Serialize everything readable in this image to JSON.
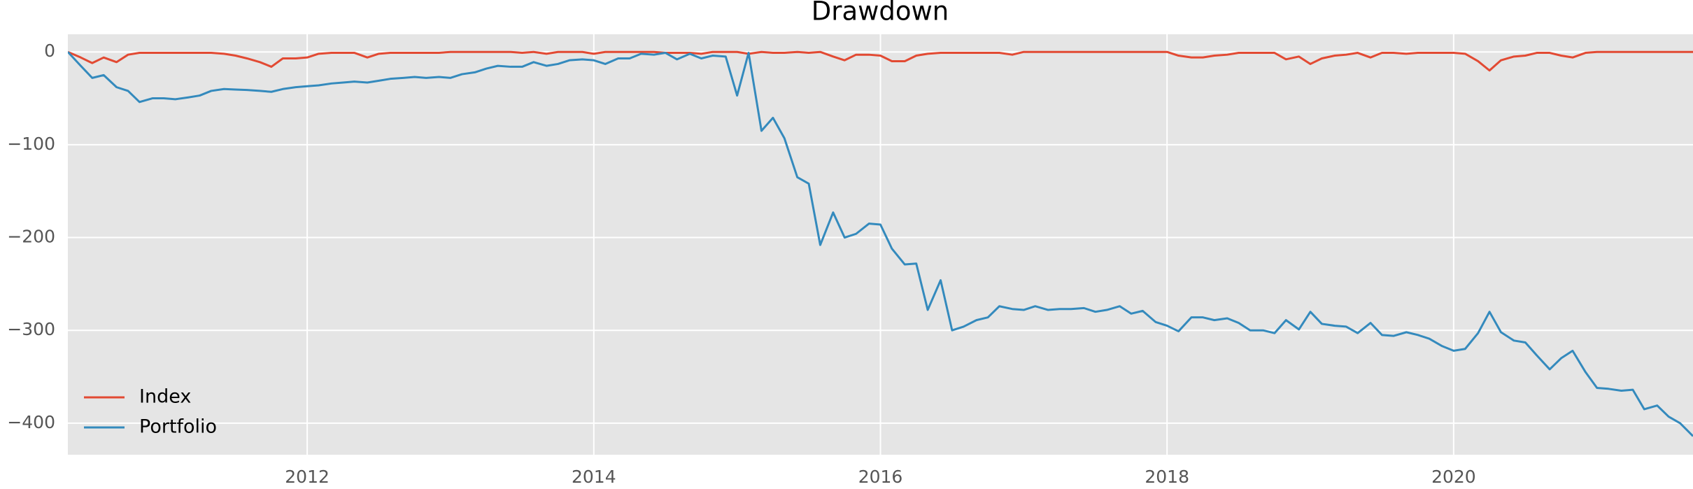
{
  "chart_data": {
    "type": "line",
    "title": "Drawdown",
    "x": [
      2010.33,
      2010.42,
      2010.5,
      2010.58,
      2010.67,
      2010.75,
      2010.83,
      2010.92,
      2011,
      2011.08,
      2011.17,
      2011.25,
      2011.33,
      2011.42,
      2011.5,
      2011.58,
      2011.67,
      2011.75,
      2011.83,
      2011.92,
      2012,
      2012.08,
      2012.17,
      2012.25,
      2012.33,
      2012.42,
      2012.5,
      2012.58,
      2012.67,
      2012.75,
      2012.83,
      2012.92,
      2013,
      2013.08,
      2013.17,
      2013.25,
      2013.33,
      2013.42,
      2013.5,
      2013.58,
      2013.67,
      2013.75,
      2013.83,
      2013.92,
      2014,
      2014.08,
      2014.17,
      2014.25,
      2014.33,
      2014.42,
      2014.5,
      2014.58,
      2014.67,
      2014.75,
      2014.83,
      2014.92,
      2015,
      2015.08,
      2015.17,
      2015.25,
      2015.33,
      2015.42,
      2015.5,
      2015.58,
      2015.67,
      2015.75,
      2015.83,
      2015.92,
      2016,
      2016.08,
      2016.17,
      2016.25,
      2016.33,
      2016.42,
      2016.5,
      2016.58,
      2016.67,
      2016.75,
      2016.83,
      2016.92,
      2017,
      2017.08,
      2017.17,
      2017.25,
      2017.33,
      2017.42,
      2017.5,
      2017.58,
      2017.67,
      2017.75,
      2017.83,
      2017.92,
      2018,
      2018.08,
      2018.17,
      2018.25,
      2018.33,
      2018.42,
      2018.5,
      2018.58,
      2018.67,
      2018.75,
      2018.83,
      2018.92,
      2019,
      2019.08,
      2019.17,
      2019.25,
      2019.33,
      2019.42,
      2019.5,
      2019.58,
      2019.67,
      2019.75,
      2019.83,
      2019.92,
      2020,
      2020.08,
      2020.17,
      2020.25,
      2020.33,
      2020.42,
      2020.5,
      2020.58,
      2020.67,
      2020.75,
      2020.83,
      2020.92,
      2021,
      2021.08,
      2021.17,
      2021.25,
      2021.33,
      2021.42,
      2021.5,
      2021.58,
      2021.67
    ],
    "series": [
      {
        "name": "Index",
        "color": "#E24A33",
        "values": [
          0,
          -6,
          -12,
          -6,
          -11,
          -3,
          -1,
          -1,
          -1,
          -1,
          -1,
          -1,
          -1,
          -2,
          -4,
          -7,
          -11,
          -16,
          -7,
          -7,
          -6,
          -2,
          -1,
          -1,
          -1,
          -6,
          -2,
          -1,
          -1,
          -1,
          -1,
          -1,
          0,
          0,
          0,
          0,
          0,
          0,
          -1,
          0,
          -2,
          0,
          0,
          0,
          -2,
          0,
          0,
          0,
          0,
          0,
          -1,
          -1,
          -1,
          -2,
          0,
          0,
          0,
          -2,
          0,
          -1,
          -1,
          0,
          -1,
          0,
          -5,
          -9,
          -3,
          -3,
          -4,
          -10,
          -10,
          -4,
          -2,
          -1,
          -1,
          -1,
          -1,
          -1,
          -1,
          -3,
          0,
          0,
          0,
          0,
          0,
          0,
          0,
          0,
          0,
          0,
          0,
          0,
          0,
          -4,
          -6,
          -6,
          -4,
          -3,
          -1,
          -1,
          -1,
          -1,
          -8,
          -5,
          -13,
          -7,
          -4,
          -3,
          -1,
          -6,
          -1,
          -1,
          -2,
          -1,
          -1,
          -1,
          -1,
          -2,
          -10,
          -20,
          -9,
          -5,
          -4,
          -1,
          -1,
          -4,
          -6,
          -1,
          0,
          0,
          0,
          0,
          0,
          0,
          0,
          0,
          0
        ]
      },
      {
        "name": "Portfolio",
        "color": "#348ABD",
        "values": [
          0,
          -15,
          -28,
          -25,
          -38,
          -42,
          -54,
          -50,
          -50,
          -51,
          -49,
          -47,
          -42,
          -40,
          -40.5,
          -41,
          -42,
          -43,
          -40,
          -38,
          -37,
          -36,
          -34,
          -33,
          -32,
          -33,
          -31,
          -29,
          -28,
          -27,
          -28,
          -27,
          -28,
          -24,
          -22,
          -18,
          -15,
          -16,
          -16,
          -11,
          -15,
          -13,
          -9,
          -8,
          -9,
          -13,
          -7,
          -7,
          -2,
          -3,
          -1,
          -8,
          -2,
          -7,
          -4,
          -5,
          -47,
          -1,
          -85,
          -71,
          -93,
          -135,
          -142,
          -208,
          -173,
          -200,
          -196,
          -185,
          -186,
          -212,
          -229,
          -228,
          -278,
          -246,
          -300,
          -296,
          -289,
          -286,
          -274,
          -277,
          -278,
          -274,
          -278,
          -277,
          -277,
          -276,
          -280,
          -278,
          -274,
          -282,
          -279,
          -291,
          -295,
          -301,
          -286,
          -286,
          -289,
          -287,
          -292,
          -300,
          -300,
          -303,
          -289,
          -299,
          -280,
          -293,
          -295,
          -296,
          -303,
          -292,
          -305,
          -306,
          -302,
          -305,
          -309,
          -317,
          -322,
          -320,
          -303,
          -280,
          -302,
          -311,
          -313,
          -327,
          -342,
          -330,
          -322,
          -345,
          -362,
          -363,
          -365,
          -364,
          -385,
          -381,
          -393,
          -400,
          -414
        ]
      }
    ],
    "xlim": [
      2010.33,
      2021.67
    ],
    "xticks": [
      2012,
      2014,
      2016,
      2018,
      2020
    ],
    "ylim": [
      -434,
      19
    ],
    "yticks": [
      0,
      {
        "value": -100,
        "label": "−100"
      },
      {
        "value": -200,
        "label": "−200"
      },
      {
        "value": -300,
        "label": "−300"
      },
      {
        "value": -400,
        "label": "−400"
      }
    ],
    "grid": true,
    "legend": "lower left"
  }
}
